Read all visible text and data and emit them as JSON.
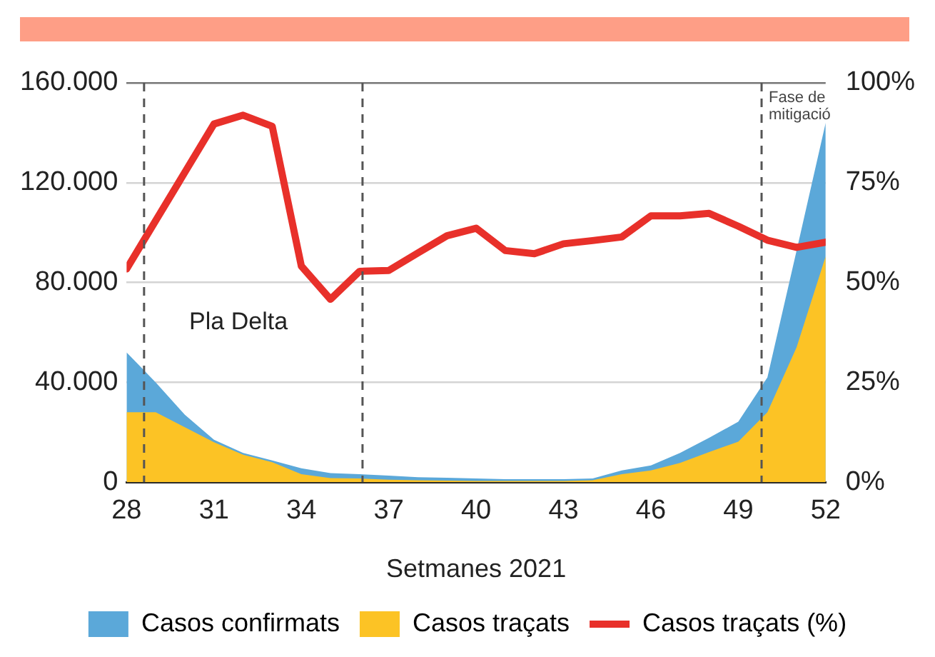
{
  "chart_data": {
    "type": "area",
    "xlabel": "Setmanes 2021",
    "x": [
      28,
      29,
      30,
      31,
      32,
      33,
      34,
      35,
      36,
      37,
      38,
      39,
      40,
      41,
      42,
      43,
      44,
      45,
      46,
      47,
      48,
      49,
      50,
      51,
      52
    ],
    "xlim": [
      28,
      52
    ],
    "xticks": [
      28,
      31,
      34,
      37,
      40,
      43,
      46,
      49,
      52
    ],
    "ylim": [
      0,
      160000
    ],
    "yticks": [
      {
        "value": 0,
        "label": "0"
      },
      {
        "value": 40000,
        "label": "40.000"
      },
      {
        "value": 80000,
        "label": "80.000"
      },
      {
        "value": 120000,
        "label": "120.000"
      },
      {
        "value": 160000,
        "label": "160.000"
      }
    ],
    "y2lim": [
      0,
      100
    ],
    "y2ticks": [
      {
        "value": 0,
        "label": "0%"
      },
      {
        "value": 25,
        "label": "25%"
      },
      {
        "value": 50,
        "label": "50%"
      },
      {
        "value": 75,
        "label": "75%"
      },
      {
        "value": 100,
        "label": "100%"
      }
    ],
    "series": [
      {
        "name": "Casos confirmats",
        "color": "#5ba8d9",
        "values": [
          52000,
          40000,
          27000,
          17000,
          11700,
          8700,
          5600,
          3600,
          3200,
          2600,
          2000,
          1800,
          1500,
          1200,
          1200,
          1200,
          1500,
          4700,
          6700,
          11700,
          17800,
          24200,
          42000,
          92700,
          144000
        ]
      },
      {
        "name": "Casos traçats",
        "color": "#fcc325",
        "values": [
          28000,
          28000,
          22000,
          16000,
          11000,
          8000,
          3200,
          1600,
          1500,
          1000,
          800,
          600,
          500,
          500,
          500,
          500,
          800,
          3200,
          4700,
          7700,
          12100,
          16200,
          28000,
          54000,
          90500
        ]
      },
      {
        "name": "Casos traçats (%)",
        "type": "line",
        "axis": "y2",
        "color": "#e8302a",
        "values": [
          53.4,
          65.5,
          77.6,
          89.7,
          91.9,
          89.1,
          54.1,
          45.8,
          52.8,
          53,
          57.4,
          61.7,
          63.6,
          58,
          57.2,
          59.7,
          60.5,
          61.4,
          66.7,
          66.7,
          67.3,
          64.1,
          60.6,
          58.8,
          60.1
        ]
      }
    ],
    "ref_lines": [
      {
        "axis": "x",
        "value": 28.6,
        "color": "#555555",
        "line_style": "dashed"
      },
      {
        "axis": "x",
        "value": 36.1,
        "color": "#555555",
        "line_style": "dashed"
      },
      {
        "axis": "x",
        "value": 49.8,
        "label": "Fase de mitigació",
        "color": "#555555",
        "line_style": "dashed"
      }
    ],
    "annotations": [
      "Pla Delta"
    ],
    "grid": "y",
    "legend": "bottom",
    "marker": "none"
  }
}
